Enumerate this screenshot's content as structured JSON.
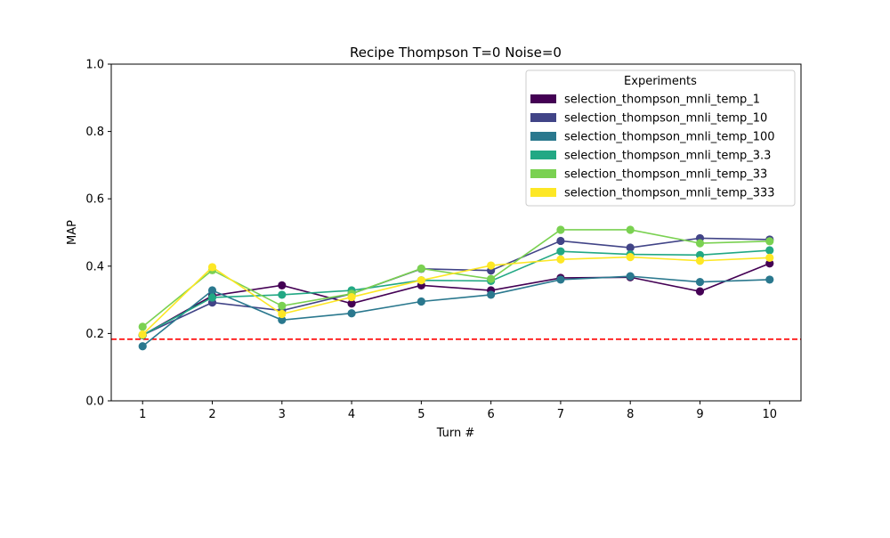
{
  "chart_data": {
    "type": "line",
    "title": "Recipe Thompson T=0 Noise=0",
    "xlabel": "Turn #",
    "ylabel": "MAP",
    "x": [
      1,
      2,
      3,
      4,
      5,
      6,
      7,
      8,
      9,
      10
    ],
    "xlim": [
      0.55,
      10.45
    ],
    "ylim": [
      0.0,
      1.0
    ],
    "yticks": [
      0.0,
      0.2,
      0.4,
      0.6,
      0.8,
      1.0
    ],
    "ytick_labels": [
      "0.0",
      "0.2",
      "0.4",
      "0.6",
      "0.8",
      "1.0"
    ],
    "xtick_labels": [
      "1",
      "2",
      "3",
      "4",
      "5",
      "6",
      "7",
      "8",
      "9",
      "10"
    ],
    "grid": false,
    "legend": {
      "title": "Experiments",
      "placement": "top-right"
    },
    "baseline": {
      "value": 0.183,
      "color": "#ff0000",
      "style": "dashed"
    },
    "series": [
      {
        "name": "selection_thompson_mnli_temp_1",
        "color": "#440154",
        "values": [
          0.195,
          0.312,
          0.343,
          0.289,
          0.343,
          0.328,
          0.365,
          0.367,
          0.325,
          0.408
        ]
      },
      {
        "name": "selection_thompson_mnli_temp_10",
        "color": "#414487",
        "values": [
          0.195,
          0.292,
          0.268,
          0.318,
          0.392,
          0.387,
          0.475,
          0.455,
          0.483,
          0.479
        ]
      },
      {
        "name": "selection_thompson_mnli_temp_100",
        "color": "#2a788e",
        "values": [
          0.162,
          0.328,
          0.24,
          0.26,
          0.295,
          0.315,
          0.36,
          0.37,
          0.353,
          0.36
        ]
      },
      {
        "name": "selection_thompson_mnli_temp_3.3",
        "color": "#22a884",
        "values": [
          0.195,
          0.307,
          0.315,
          0.328,
          0.358,
          0.356,
          0.444,
          0.435,
          0.433,
          0.447
        ]
      },
      {
        "name": "selection_thompson_mnli_temp_33",
        "color": "#7ad151",
        "values": [
          0.22,
          0.388,
          0.282,
          0.318,
          0.393,
          0.362,
          0.508,
          0.508,
          0.468,
          0.474
        ]
      },
      {
        "name": "selection_thompson_mnli_temp_333",
        "color": "#fde725",
        "values": [
          0.197,
          0.397,
          0.258,
          0.308,
          0.358,
          0.402,
          0.42,
          0.427,
          0.416,
          0.425
        ]
      }
    ]
  }
}
